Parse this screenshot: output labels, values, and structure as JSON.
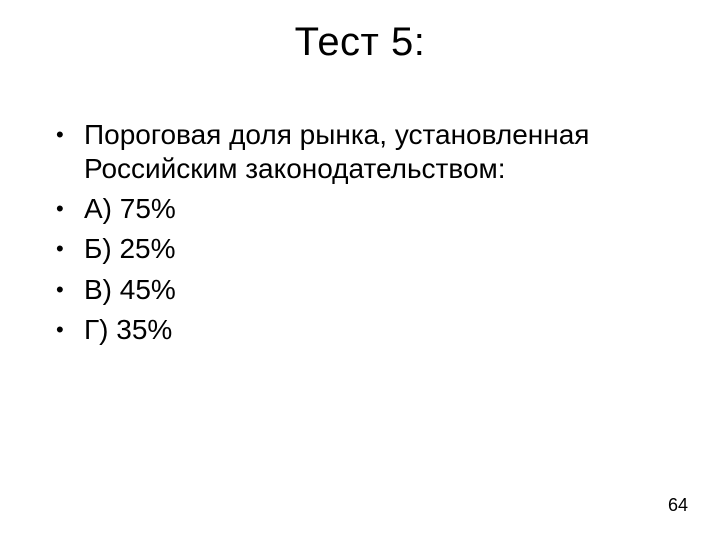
{
  "slide": {
    "title": "Тест 5:",
    "bullets": [
      "Пороговая доля рынка, установленная Российским законодательством:",
      "А) 75%",
      "Б) 25%",
      "В) 45%",
      "Г) 35%"
    ],
    "page_number": "64",
    "style": {
      "background_color": "#ffffff",
      "text_color": "#000000",
      "title_fontsize": 40,
      "body_fontsize": 28,
      "bullet_char": "•",
      "font_family": "Arial"
    }
  }
}
